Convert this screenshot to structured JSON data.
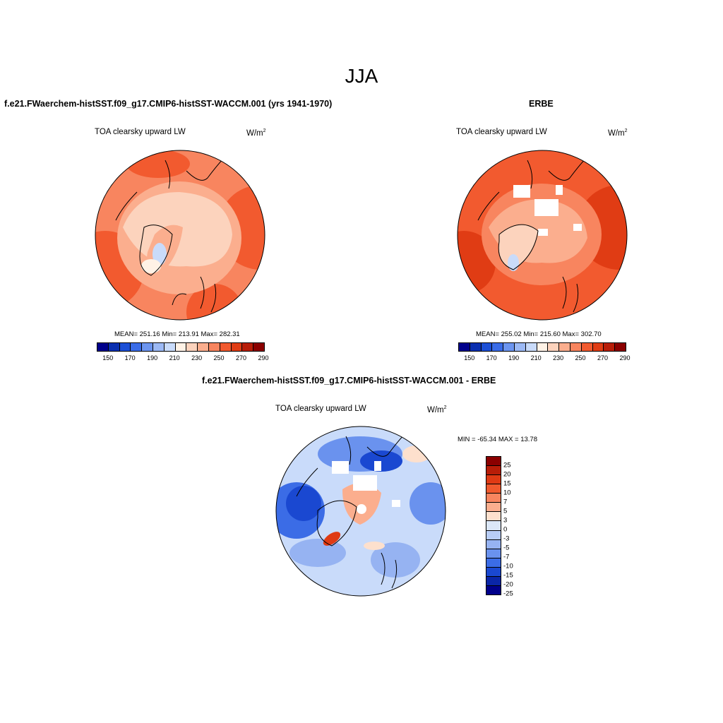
{
  "season": "JJA",
  "panels": [
    {
      "title": "f.e21.FWaerchem-histSST.f09_g17.CMIP6-histSST-WACCM.001 (yrs 1941-1970)",
      "variable": "TOA clearsky upward LW",
      "units_base": "W/m",
      "units_exp": "2",
      "stats": "MEAN= 251.16  Min= 213.91  Max= 282.31"
    },
    {
      "title": "ERBE",
      "variable": "TOA clearsky upward LW",
      "units_base": "W/m",
      "units_exp": "2",
      "stats": "MEAN= 255.02  Min= 215.60  Max= 302.70"
    },
    {
      "title": "f.e21.FWaerchem-histSST.f09_g17.CMIP6-histSST-WACCM.001 - ERBE",
      "variable": "TOA clearsky upward LW",
      "units_base": "W/m",
      "units_exp": "2",
      "stats": "MIN = -65.34 MAX =  13.78"
    }
  ],
  "colorbar_abs": {
    "colors": [
      "#00008b",
      "#0a2fb0",
      "#1c4fd6",
      "#3a6ce8",
      "#6c95f0",
      "#9cb9f5",
      "#c9dbfa",
      "#fff2e6",
      "#fcd3bd",
      "#fbae8e",
      "#f8855f",
      "#f25a2f",
      "#e03c14",
      "#b81d08",
      "#8b0000"
    ],
    "labels": [
      "150",
      "170",
      "190",
      "210",
      "230",
      "250",
      "270",
      "290"
    ]
  },
  "colorbar_diff": {
    "colors": [
      "#8b0000",
      "#b81d08",
      "#df3a14",
      "#f05a2e",
      "#f8855f",
      "#fbae8e",
      "#fde0cd",
      "#dbe7f8",
      "#b8cdf6",
      "#96b3f2",
      "#6a92ee",
      "#3b6ce6",
      "#1a48d1",
      "#0a26a8",
      "#00008b"
    ],
    "labels": [
      "25",
      "20",
      "15",
      "10",
      "7",
      "5",
      "3",
      "0",
      "-3",
      "-5",
      "-7",
      "-10",
      "-15",
      "-20",
      "-25"
    ]
  }
}
